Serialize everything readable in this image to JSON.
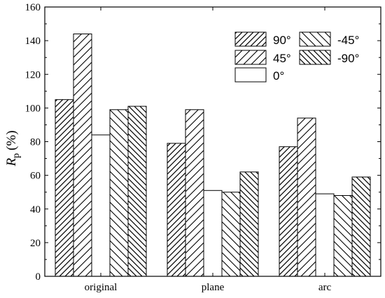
{
  "chart_data": {
    "type": "bar",
    "categories": [
      "original",
      "plane",
      "arc"
    ],
    "series": [
      {
        "name": "90°",
        "values": [
          105,
          79,
          77
        ]
      },
      {
        "name": "45°",
        "values": [
          144,
          99,
          94
        ]
      },
      {
        "name": "0°",
        "values": [
          84,
          51,
          49
        ]
      },
      {
        "name": "-45°",
        "values": [
          99,
          50,
          48
        ]
      },
      {
        "name": "-90°",
        "values": [
          101,
          62,
          59
        ]
      }
    ],
    "title": "",
    "xlabel": "",
    "ylabel_main": "R",
    "ylabel_sub": "p",
    "ylabel_unit": "(%)",
    "ylim": [
      0,
      160
    ],
    "yticks": [
      0,
      20,
      40,
      60,
      80,
      100,
      120,
      140,
      160
    ],
    "grid": false,
    "legend_position": "top-right",
    "legend_columns": 2
  },
  "colors": {
    "bar_stroke": "#000000",
    "bar_fill": "#ffffff",
    "hatch": "#000000"
  }
}
